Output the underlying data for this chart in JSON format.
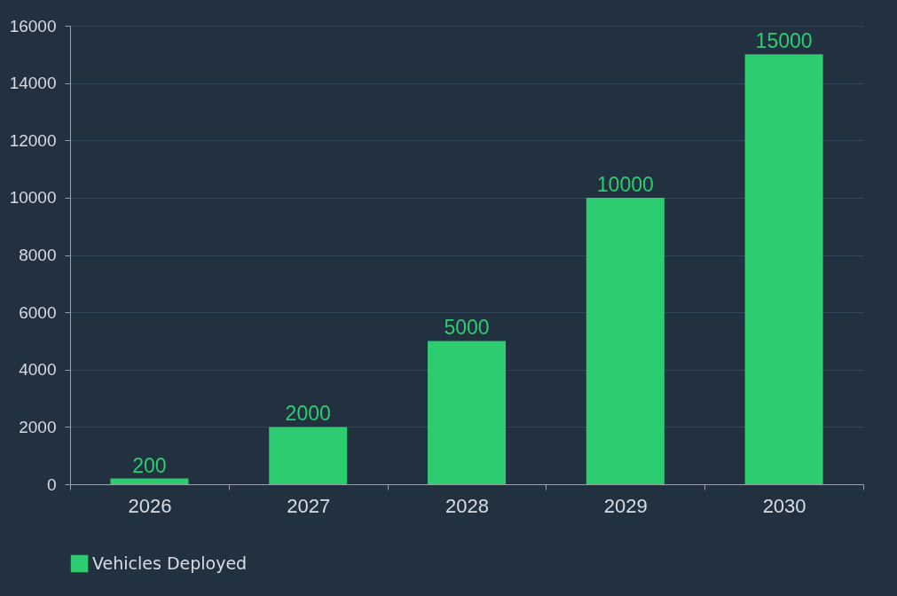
{
  "chart_data": {
    "type": "bar",
    "categories": [
      "2026",
      "2027",
      "2028",
      "2029",
      "2030"
    ],
    "series": [
      {
        "name": "Vehicles Deployed",
        "color": "#2ecc71",
        "values": [
          200,
          2000,
          5000,
          10000,
          15000
        ]
      }
    ],
    "ylim": [
      0,
      16000
    ],
    "yticks": [
      0,
      2000,
      4000,
      6000,
      8000,
      10000,
      12000,
      14000,
      16000
    ],
    "grid": "y",
    "legend": "bottom",
    "data_labels": true
  }
}
